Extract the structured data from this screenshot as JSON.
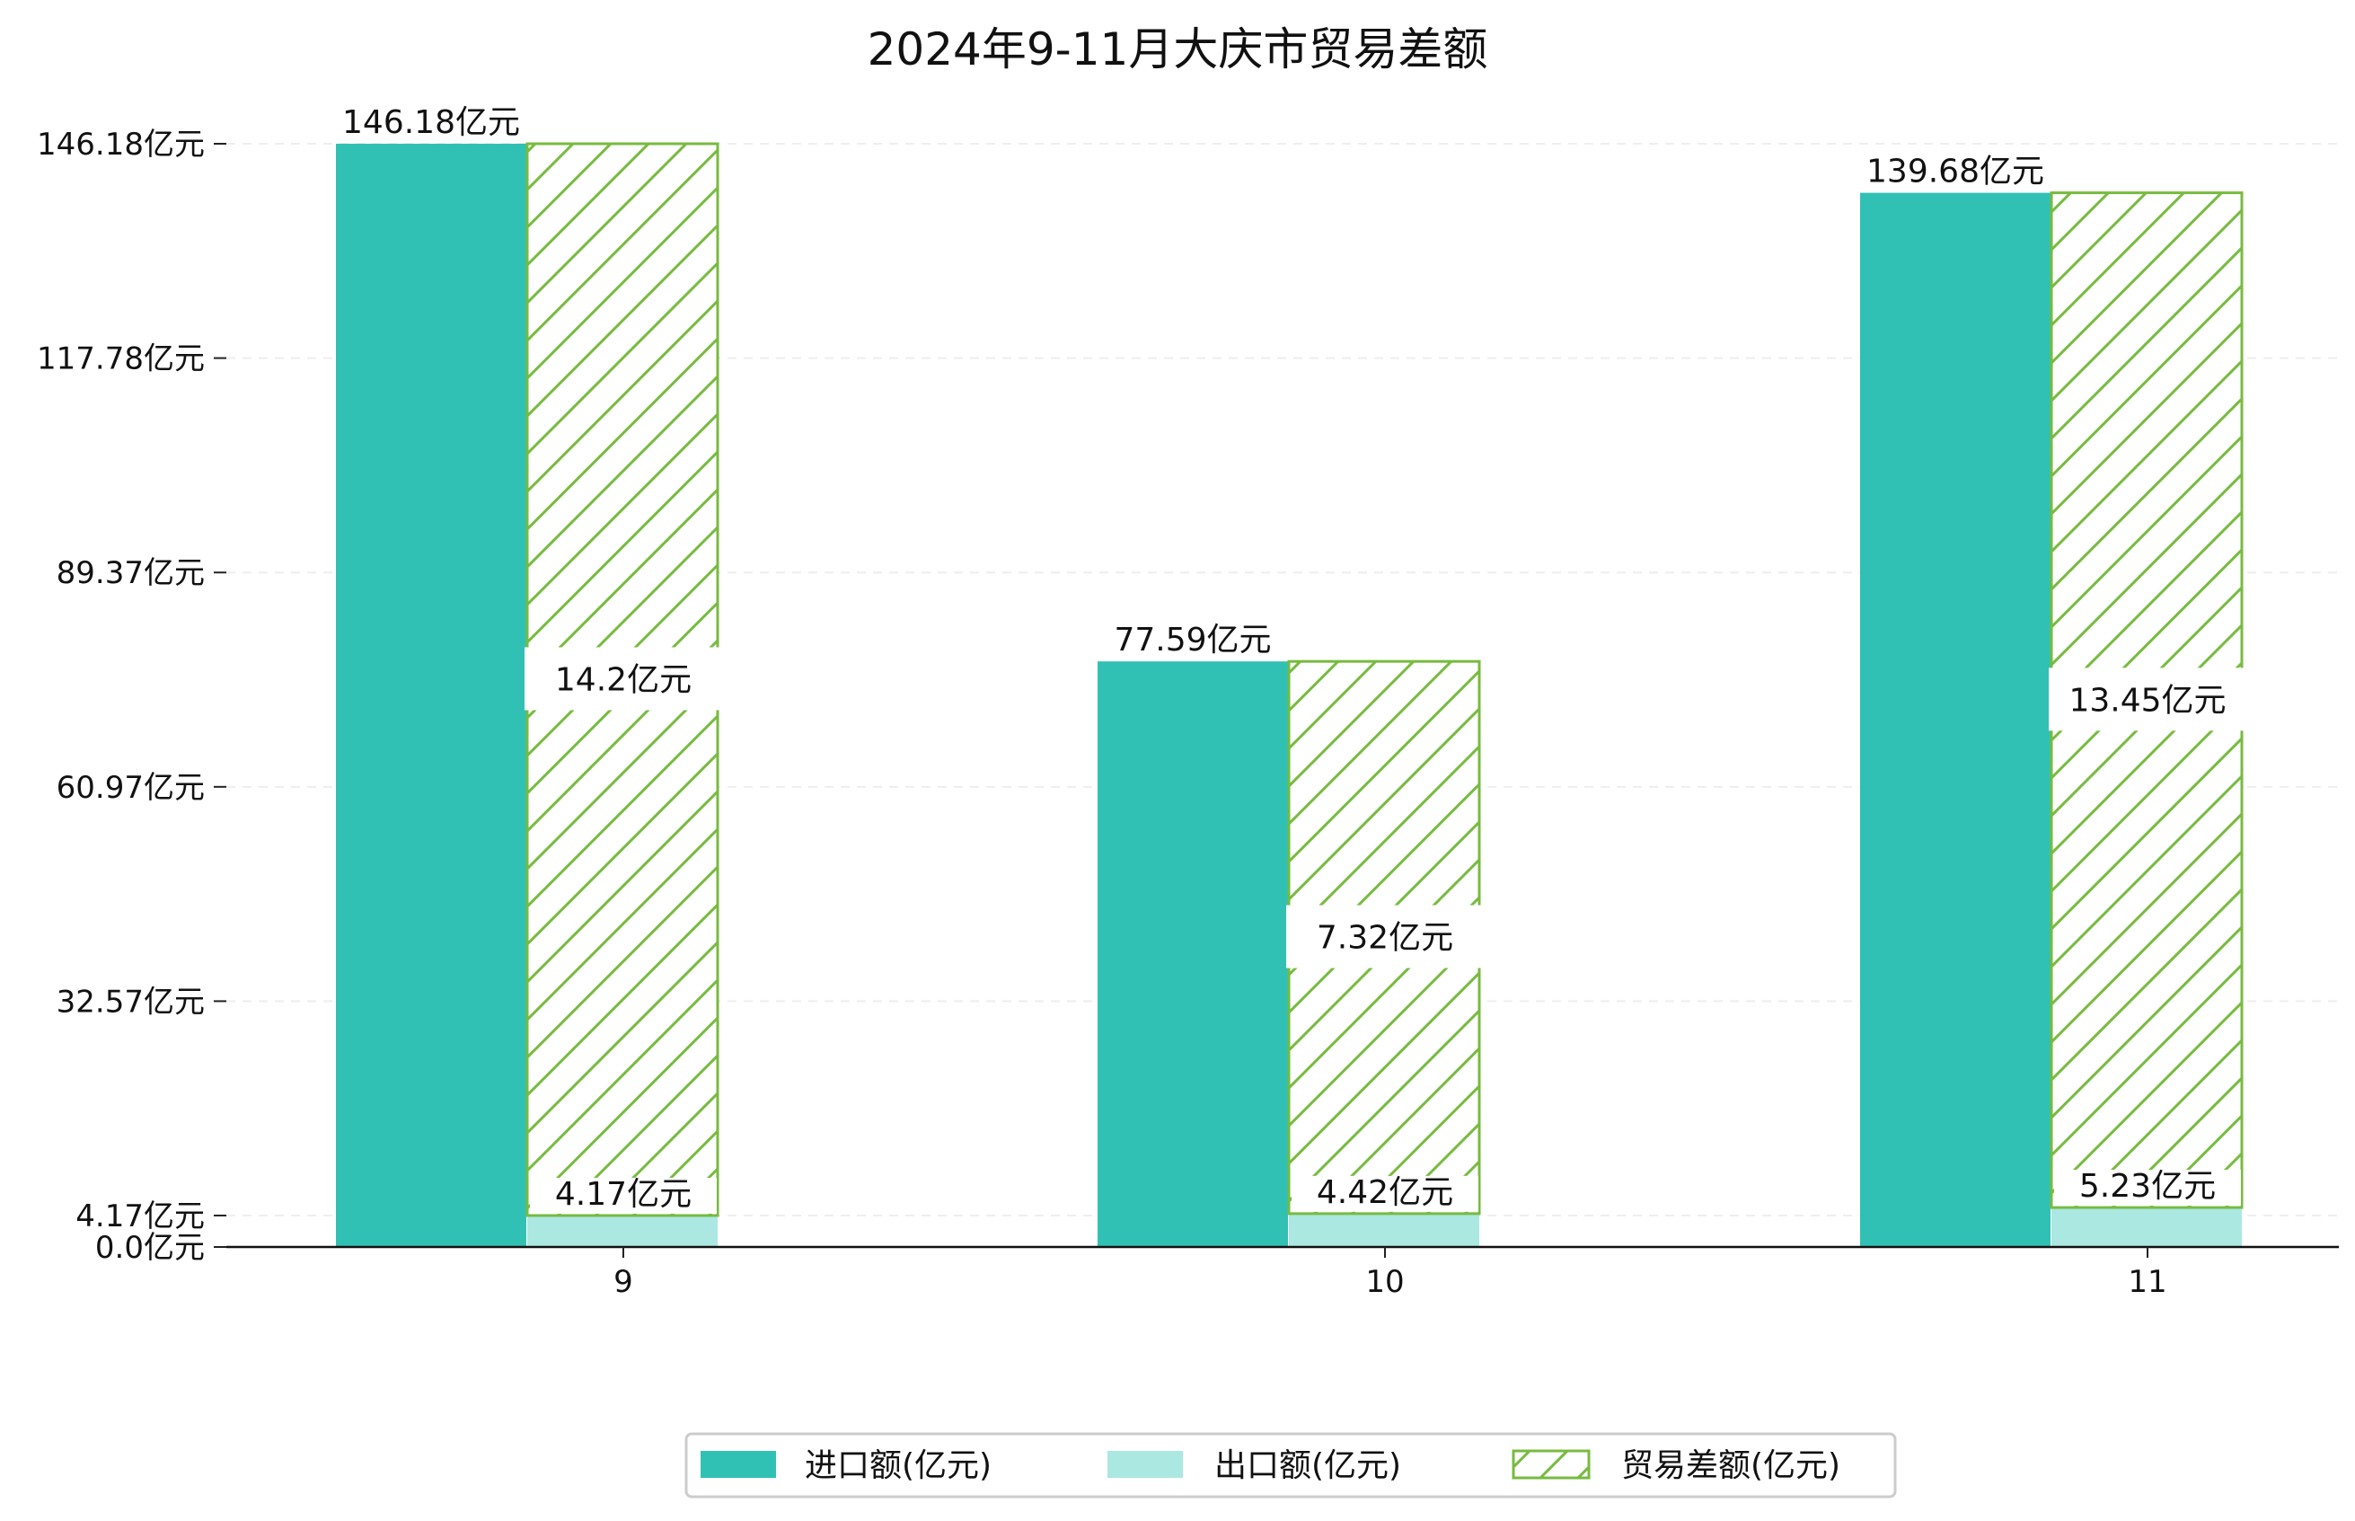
{
  "chart_data": {
    "type": "bar",
    "title": "2024年9-11月大庆市贸易差额",
    "xlabel": "",
    "ylabel": "",
    "categories": [
      "9",
      "10",
      "11"
    ],
    "ylim": [
      0,
      146.18
    ],
    "yticks": [
      0.0,
      4.17,
      32.57,
      60.97,
      89.37,
      117.78,
      146.18
    ],
    "ytick_labels": [
      "0.0亿元",
      "4.17亿元",
      "32.57亿元",
      "60.97亿元",
      "89.37亿元",
      "117.78亿元",
      "146.18亿元"
    ],
    "grid": "horizontal dashed",
    "legend_position": "bottom-center",
    "series": [
      {
        "name": "进口额(亿元)",
        "color": "#31c1b4",
        "values": [
          146.18,
          77.59,
          139.68
        ],
        "labels": [
          "146.18亿元",
          "77.59亿元",
          "139.68亿元"
        ]
      },
      {
        "name": "出口额(亿元)",
        "color": "#abe8e2",
        "values": [
          4.17,
          4.42,
          5.23
        ],
        "labels": [
          "4.17亿元",
          "4.42亿元",
          "5.23亿元"
        ]
      },
      {
        "name": "贸易差额(亿元)",
        "color": "#77bb3f",
        "hatch": "/",
        "values": [
          14.2,
          7.32,
          13.45
        ],
        "labels": [
          "14.2亿元",
          "7.32亿元",
          "13.45亿元"
        ]
      }
    ]
  }
}
